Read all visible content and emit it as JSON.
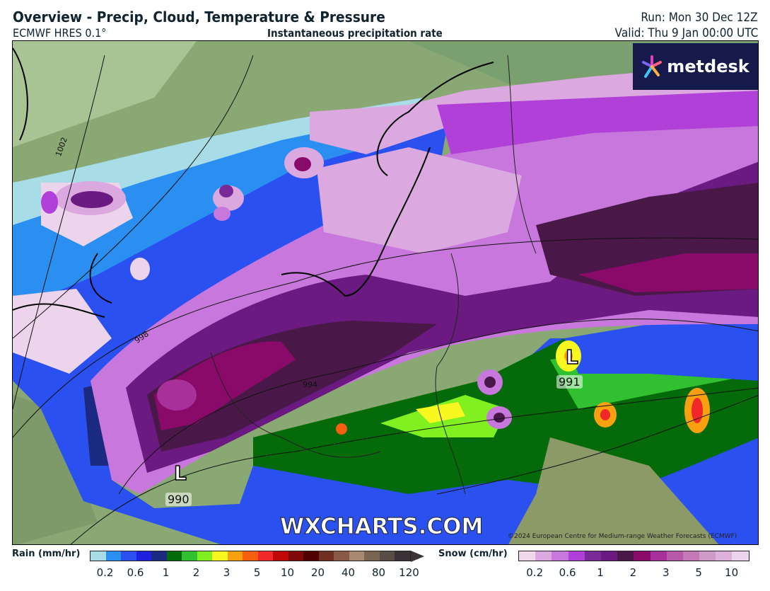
{
  "header": {
    "title": "Overview - Precip, Cloud, Temperature & Pressure",
    "model": "ECMWF HRES 0.1°",
    "subtitle": "Instantaneous precipitation rate",
    "run": "Run: Mon 30 Dec 12Z",
    "valid": "Valid: Thu 9 Jan 00:00 UTC"
  },
  "map": {
    "logo": "metdesk",
    "watermark": "WXCHARTS.COM",
    "copyright": "©2024 European Centre for Medium-range Weather Forecasts (ECMWF)",
    "lows": [
      {
        "symbol": "L",
        "pressure": "990"
      },
      {
        "symbol": "L",
        "pressure": "991"
      }
    ],
    "isobars": [
      "1002",
      "998",
      "994"
    ]
  },
  "legend": {
    "rain": {
      "label": "Rain (mm/hr)",
      "ticks": [
        "0.2",
        "0.6",
        "1",
        "2",
        "3",
        "5",
        "10",
        "20",
        "40",
        "80",
        "120"
      ],
      "colors": [
        "#a8dce6",
        "#2a8ff0",
        "#2a50f0",
        "#2020e0",
        "#1a2a80",
        "#046a0a",
        "#30c030",
        "#80f020",
        "#f8f820",
        "#f8a010",
        "#f86010",
        "#f02828",
        "#c00808",
        "#800808",
        "#500000",
        "#703020",
        "#8a5a48",
        "#a88a70",
        "#7a6650",
        "#5a4e44",
        "#3a3236"
      ]
    },
    "snow": {
      "label": "Snow (cm/hr)",
      "ticks": [
        "0.2",
        "0.6",
        "1",
        "2",
        "3",
        "5",
        "10"
      ],
      "colors": [
        "#f0d8ec",
        "#dca8e0",
        "#c878dc",
        "#b040d8",
        "#7a2a98",
        "#6a1a80",
        "#4a1848",
        "#8a0a6a",
        "#a8309a",
        "#b858a8",
        "#c478b8",
        "#d09ac8",
        "#dcb0d8",
        "#ecd4ec"
      ]
    }
  }
}
